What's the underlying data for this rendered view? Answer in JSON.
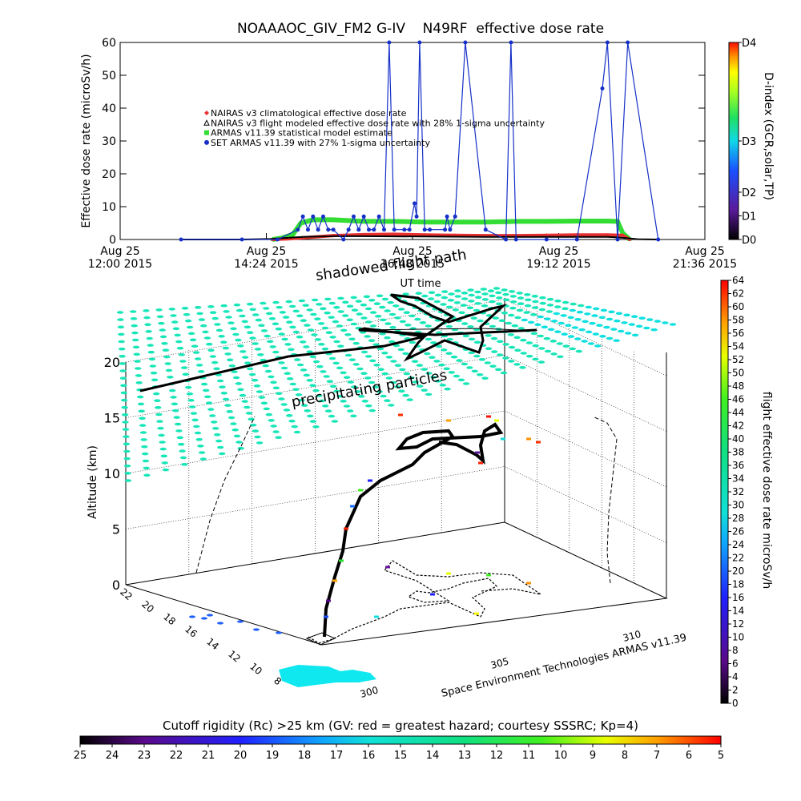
{
  "chart_data": [
    {
      "type": "line",
      "title": "NOAAAOC_GIV_FM2 G-IV    N49RF  effective dose rate",
      "ylabel": "Effective dose rate (microSv/h)",
      "xlabel": "UT time",
      "xlim": [
        "2015-08-25 12:00",
        "2015-08-25 21:36"
      ],
      "ylim": [
        0,
        60
      ],
      "yticks": [
        0,
        10,
        20,
        30,
        40,
        50,
        60
      ],
      "xtick_labels": [
        {
          "line1": "Aug 25",
          "line2": "12:00 2015"
        },
        {
          "line1": "Aug 25",
          "line2": "14:24 2015"
        },
        {
          "line1": "Aug 25",
          "line2": "16:48 2015"
        },
        {
          "line1": "Aug 25",
          "line2": "19:12 2015"
        },
        {
          "line1": "Aug 25",
          "line2": "21:36 2015"
        }
      ],
      "legend": [
        {
          "label": "NAIRAS v3 climatological effective dose rate",
          "color": "#e83030",
          "marker": "diamond"
        },
        {
          "label": "NAIRAS v3 flight modeled effective dose rate with 28% 1-sigma uncertainty",
          "color": "#000000",
          "marker": "triangle"
        },
        {
          "label": "ARMAS v11.39 statistical model estimate",
          "color": "#33dd33",
          "marker": "square"
        },
        {
          "label": "SET ARMAS v11.39 with 27% 1-sigma uncertainty",
          "color": "#1530c8",
          "marker": "circle"
        }
      ],
      "series": [
        {
          "name": "ARMAS v11.39 statistical model estimate",
          "color": "#33dd33",
          "x": [
            "2015-08-25 14:30",
            "2015-08-25 14:40",
            "2015-08-25 14:50",
            "2015-08-25 14:58",
            "2015-08-25 15:10",
            "2015-08-25 15:30",
            "2015-08-25 16:00",
            "2015-08-25 16:30",
            "2015-08-25 17:00",
            "2015-08-25 17:30",
            "2015-08-25 18:00",
            "2015-08-25 18:30",
            "2015-08-25 19:00",
            "2015-08-25 19:30",
            "2015-08-25 20:00",
            "2015-08-25 20:10",
            "2015-08-25 20:15",
            "2015-08-25 20:22"
          ],
          "y": [
            0,
            0.5,
            1.5,
            5,
            6,
            6,
            5.5,
            5.5,
            5.3,
            5.3,
            5.3,
            5.5,
            5.5,
            5.6,
            5.6,
            5.5,
            2,
            0
          ]
        },
        {
          "name": "NAIRAS v3 climatological effective dose rate",
          "color": "#e83030",
          "x": [
            "2015-08-25 14:30",
            "2015-08-25 14:45",
            "2015-08-25 15:00",
            "2015-08-25 15:30",
            "2015-08-25 16:00",
            "2015-08-25 16:30",
            "2015-08-25 17:00",
            "2015-08-25 17:30",
            "2015-08-25 18:00",
            "2015-08-25 18:30",
            "2015-08-25 19:00",
            "2015-08-25 19:30",
            "2015-08-25 20:00",
            "2015-08-25 20:15",
            "2015-08-25 20:22"
          ],
          "y": [
            0,
            0.2,
            0.5,
            1.2,
            1.5,
            1.6,
            1.4,
            1.3,
            1.2,
            1.2,
            1.3,
            1.4,
            1.4,
            1.3,
            0
          ]
        },
        {
          "name": "NAIRAS v3 flight modeled effective dose rate with 28% 1-sigma uncertainty",
          "color": "#000000",
          "x": [
            "2015-08-25 13:00",
            "2015-08-25 14:00",
            "2015-08-25 14:30",
            "2015-08-25 14:45",
            "2015-08-25 15:00",
            "2015-08-25 15:30",
            "2015-08-25 16:00",
            "2015-08-25 17:00",
            "2015-08-25 18:00",
            "2015-08-25 19:00",
            "2015-08-25 20:00",
            "2015-08-25 20:15",
            "2015-08-25 20:30",
            "2015-08-25 20:50"
          ],
          "y": [
            0,
            0,
            0.2,
            0.5,
            0.8,
            1,
            1,
            0.9,
            0.8,
            0.8,
            0.8,
            0.5,
            0.1,
            0
          ]
        },
        {
          "name": "SET ARMAS v11.39 with 27% 1-sigma uncertainty",
          "color": "#1530c8",
          "x": [
            "2015-08-25 13:00",
            "2015-08-25 14:00",
            "2015-08-25 14:35",
            "2015-08-25 14:55",
            "2015-08-25 15:00",
            "2015-08-25 15:05",
            "2015-08-25 15:10",
            "2015-08-25 15:15",
            "2015-08-25 15:20",
            "2015-08-25 15:25",
            "2015-08-25 15:30",
            "2015-08-25 15:40",
            "2015-08-25 15:45",
            "2015-08-25 15:50",
            "2015-08-25 15:55",
            "2015-08-25 16:00",
            "2015-08-25 16:05",
            "2015-08-25 16:10",
            "2015-08-25 16:15",
            "2015-08-25 16:20",
            "2015-08-25 16:25",
            "2015-08-25 16:30",
            "2015-08-25 16:40",
            "2015-08-25 16:45",
            "2015-08-25 16:50",
            "2015-08-25 16:52",
            "2015-08-25 16:55",
            "2015-08-25 17:00",
            "2015-08-25 17:05",
            "2015-08-25 17:20",
            "2015-08-25 17:22",
            "2015-08-25 17:25",
            "2015-08-25 17:30",
            "2015-08-25 17:40",
            "2015-08-25 18:00",
            "2015-08-25 18:20",
            "2015-08-25 18:25",
            "2015-08-25 18:30",
            "2015-08-25 19:00",
            "2015-08-25 19:30",
            "2015-08-25 19:55",
            "2015-08-25 20:00",
            "2015-08-25 20:10",
            "2015-08-25 20:20",
            "2015-08-25 20:50"
          ],
          "y": [
            0,
            0,
            0,
            3,
            7,
            3,
            7,
            3,
            7,
            3,
            3,
            0,
            3,
            7,
            3,
            7,
            3,
            3,
            7,
            3,
            62,
            3,
            3,
            3,
            11,
            7,
            62,
            3,
            3,
            3,
            7,
            3,
            7,
            62,
            3,
            0,
            62,
            0,
            0,
            0,
            46,
            62,
            0,
            62,
            0
          ]
        }
      ],
      "colorbar": {
        "label": "D-index (GCR,solar,TP)",
        "ticks": [
          "D0",
          "D1",
          "D2",
          "D3",
          "D4"
        ]
      }
    },
    {
      "type": "scatter",
      "title": "",
      "zlabel": "Altitude (km)",
      "zticks": [
        0,
        5,
        10,
        15,
        20
      ],
      "y_axis_ticks": [
        8,
        10,
        12,
        14,
        16,
        18,
        20,
        22
      ],
      "x_axis_ticks": [
        300,
        305,
        310
      ],
      "annotations": [
        "shadowed flight path",
        "precipitating particles",
        "UT time"
      ],
      "credit": "Space Environment Technologies ARMAS v11.39",
      "colorbar_right": {
        "label": "flight effective dose rate microSv/h",
        "ticks": [
          0,
          2,
          4,
          6,
          8,
          10,
          12,
          14,
          16,
          18,
          20,
          22,
          24,
          26,
          28,
          30,
          32,
          34,
          36,
          38,
          40,
          42,
          44,
          46,
          48,
          50,
          52,
          54,
          56,
          58,
          60,
          62,
          64
        ],
        "range": [
          0,
          64
        ]
      },
      "colorbar_bottom": {
        "label": "Cutoff rigidity (Rc) >25 km (GV: red = greatest hazard; courtesy SSSRC; Kp=4)",
        "ticks": [
          25,
          24,
          23,
          22,
          21,
          20,
          19,
          18,
          17,
          16,
          15,
          14,
          13,
          12,
          11,
          10,
          9,
          8,
          7,
          6,
          5
        ],
        "range": [
          25,
          5
        ]
      }
    }
  ]
}
